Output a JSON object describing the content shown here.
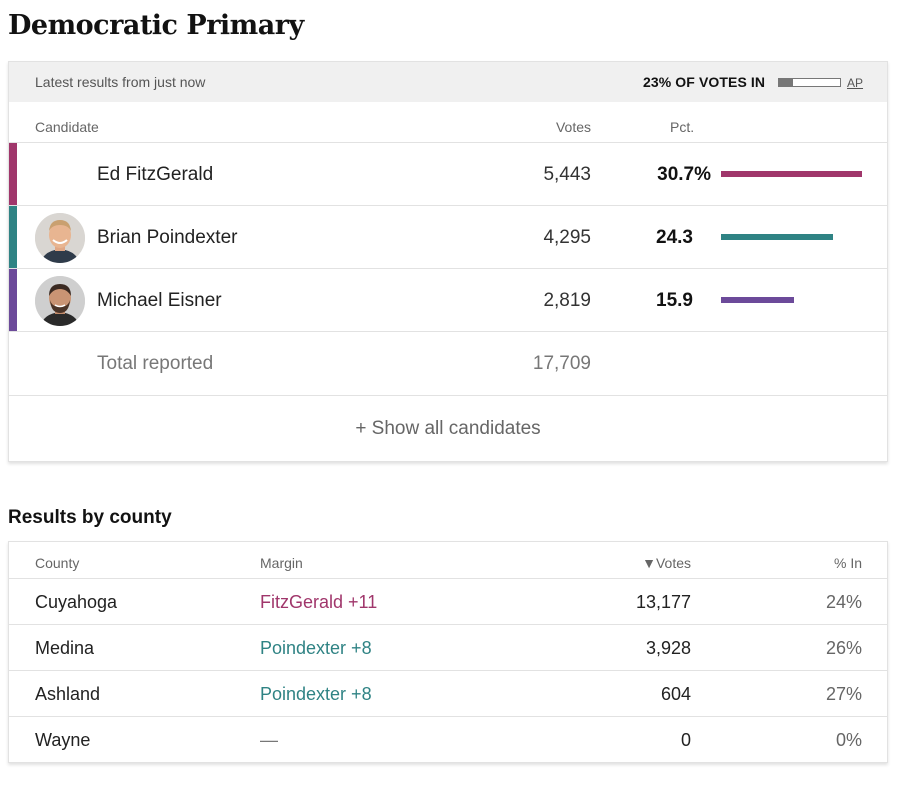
{
  "title": "Democratic Primary",
  "results": {
    "latest": "Latest results from just now",
    "votes_in_label": "23% OF VOTES IN",
    "votes_in_fraction": 0.23,
    "ap_label": "AP",
    "headers": {
      "candidate": "Candidate",
      "votes": "Votes",
      "pct": "Pct."
    },
    "candidates": [
      {
        "name": "Ed FitzGerald",
        "votes": "5,443",
        "pct": "30.7%",
        "pct_value": 30.7,
        "color": "#a0366b",
        "photo": false
      },
      {
        "name": "Brian Poindexter",
        "votes": "4,295",
        "pct": "24.3",
        "pct_value": 24.3,
        "color": "#2f8384",
        "photo": true
      },
      {
        "name": "Michael Eisner",
        "votes": "2,819",
        "pct": "15.9",
        "pct_value": 15.9,
        "color": "#6c4a9a",
        "photo": true
      }
    ],
    "total_label": "Total reported",
    "total_votes": "17,709",
    "show_all": "+ Show all candidates"
  },
  "county": {
    "title": "Results by county",
    "headers": {
      "county": "County",
      "margin": "Margin",
      "votes": "▼Votes",
      "pct_in": "% In"
    },
    "rows": [
      {
        "county": "Cuyahoga",
        "margin": "FitzGerald +11",
        "margin_color": "#a0366b",
        "votes": "13,177",
        "pct_in": "24%"
      },
      {
        "county": "Medina",
        "margin": "Poindexter +8",
        "margin_color": "#2f8384",
        "votes": "3,928",
        "pct_in": "26%"
      },
      {
        "county": "Ashland",
        "margin": "Poindexter +8",
        "margin_color": "#2f8384",
        "votes": "604",
        "pct_in": "27%"
      },
      {
        "county": "Wayne",
        "margin": "—",
        "margin_color": "#777777",
        "votes": "0",
        "pct_in": "0%"
      }
    ]
  }
}
